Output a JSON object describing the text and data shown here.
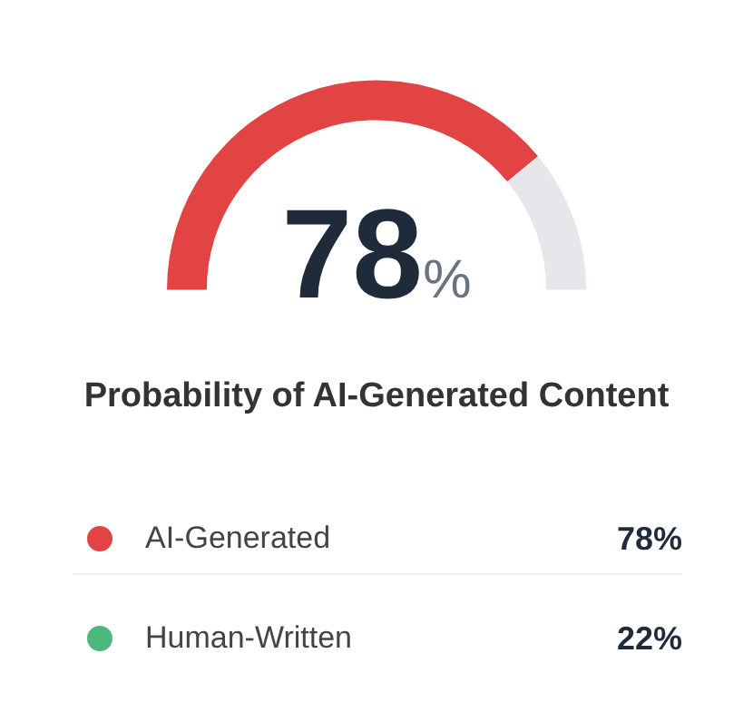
{
  "chart_data": [
    {
      "type": "donut",
      "title": "Probability of AI-Generated Content",
      "categories": [
        null,
        null
      ],
      "values": [
        78,
        22
      ],
      "colors": [
        "#e24444",
        "#e5e7eb"
      ],
      "annotations": [
        "78%"
      ]
    },
    {
      "type": "other",
      "annotations": [
        "AI-Generated",
        "78%",
        "Human-Written",
        "22%"
      ]
    }
  ]
}
